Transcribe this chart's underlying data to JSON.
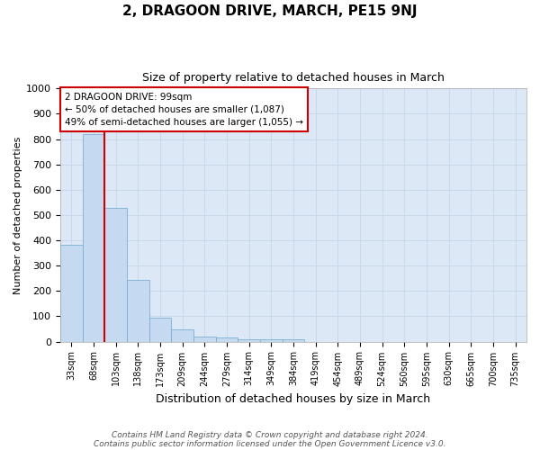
{
  "title": "2, DRAGOON DRIVE, MARCH, PE15 9NJ",
  "subtitle": "Size of property relative to detached houses in March",
  "xlabel": "Distribution of detached houses by size in March",
  "ylabel": "Number of detached properties",
  "bar_labels": [
    "33sqm",
    "68sqm",
    "103sqm",
    "138sqm",
    "173sqm",
    "209sqm",
    "244sqm",
    "279sqm",
    "314sqm",
    "349sqm",
    "384sqm",
    "419sqm",
    "454sqm",
    "489sqm",
    "524sqm",
    "560sqm",
    "595sqm",
    "630sqm",
    "665sqm",
    "700sqm",
    "735sqm"
  ],
  "bar_heights": [
    383,
    820,
    530,
    243,
    95,
    50,
    20,
    15,
    10,
    8,
    8,
    0,
    0,
    0,
    0,
    0,
    0,
    0,
    0,
    0,
    0
  ],
  "bar_color": "#c5d9f0",
  "bar_edge_color": "#7bafd4",
  "property_line_color": "#cc0000",
  "annotation_text": "2 DRAGOON DRIVE: 99sqm\n← 50% of detached houses are smaller (1,087)\n49% of semi-detached houses are larger (1,055) →",
  "ylim_max": 1000,
  "grid_color": "#c8d8ea",
  "plot_bg_color": "#dce8f5",
  "fig_bg_color": "#ffffff",
  "footnote_line1": "Contains HM Land Registry data © Crown copyright and database right 2024.",
  "footnote_line2": "Contains public sector information licensed under the Open Government Licence v3.0.",
  "title_fontsize": 11,
  "subtitle_fontsize": 9,
  "ylabel_fontsize": 8,
  "xlabel_fontsize": 9,
  "tick_fontsize": 7,
  "annotation_fontsize": 7.5,
  "footnote_fontsize": 6.5
}
